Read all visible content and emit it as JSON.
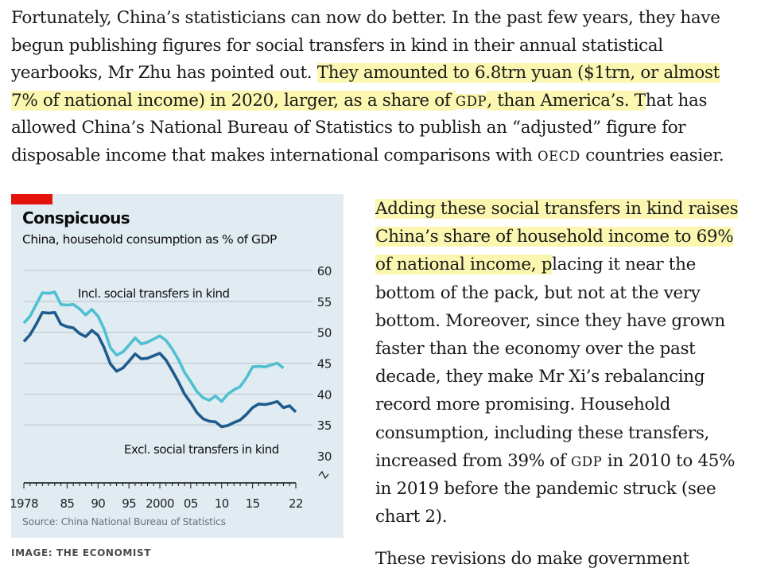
{
  "article": {
    "intro_lines": [
      [
        {
          "t": "Fortunately, China’s statisticians can now do better. In the past few years, they have"
        }
      ],
      [
        {
          "t": "begun publishing figures for social transfers in kind in their annual statistical"
        }
      ],
      [
        {
          "t": "yearbooks, Mr Zhu has pointed out. "
        },
        {
          "t": "They amounted to 6.8trn yuan ($1trn, or almost",
          "hl": true
        }
      ],
      [
        {
          "t": "7% of national income) in 2020, larger, as a share of ",
          "hl": true
        },
        {
          "t": "GDP",
          "hl": true,
          "sc": true
        },
        {
          "t": ", than America’s. T",
          "hl": true
        },
        {
          "t": "hat has"
        }
      ],
      [
        {
          "t": "allowed China’s National Bureau of Statistics to publish an “adjusted” figure for"
        }
      ],
      [
        {
          "t": "disposable income that makes international comparisons with "
        },
        {
          "t": "OECD",
          "sc": true
        },
        {
          "t": " countries easier."
        }
      ]
    ],
    "side_lines": [
      [
        {
          "t": "Adding these social transfers in kind raises",
          "hl": true
        }
      ],
      [
        {
          "t": "China’s share of household income to 69%",
          "hl": true
        }
      ],
      [
        {
          "t": "of national income, p",
          "hl": true
        },
        {
          "t": "lacing it near the"
        }
      ],
      [
        {
          "t": "bottom of the pack, but not at the very"
        }
      ],
      [
        {
          "t": "bottom. Moreover, since they have grown"
        }
      ],
      [
        {
          "t": "faster than the economy over the past"
        }
      ],
      [
        {
          "t": "decade, they make Mr Xi’s rebalancing"
        }
      ],
      [
        {
          "t": "record more promising. Household"
        }
      ],
      [
        {
          "t": "consumption, including these transfers,"
        }
      ],
      [
        {
          "t": "increased from 39% of "
        },
        {
          "t": "GDP",
          "sc": true
        },
        {
          "t": " in 2010 to 45%"
        }
      ],
      [
        {
          "t": "in 2019 before the pandemic struck (see"
        }
      ],
      [
        {
          "t": "chart 2)."
        }
      ]
    ],
    "next_line": "These revisions do make government",
    "image_credit": "IMAGE: THE ECONOMIST"
  },
  "chart_data": {
    "type": "line",
    "title": "Conspicuous",
    "subtitle": "China, household consumption as % of GDP",
    "source": "Source: China National Bureau of Statistics",
    "xlim": [
      1978,
      2022
    ],
    "ylim": [
      30,
      60
    ],
    "y_ticks": [
      30,
      35,
      40,
      45,
      50,
      55,
      60
    ],
    "x_tick_labels": [
      {
        "year": 1978,
        "label": "1978"
      },
      {
        "year": 1985,
        "label": "85"
      },
      {
        "year": 1990,
        "label": "90"
      },
      {
        "year": 1995,
        "label": "95"
      },
      {
        "year": 2000,
        "label": "2000"
      },
      {
        "year": 2005,
        "label": "05"
      },
      {
        "year": 2010,
        "label": "10"
      },
      {
        "year": 2015,
        "label": "15"
      },
      {
        "year": 2022,
        "label": "22"
      }
    ],
    "y_axis_side": "right",
    "axis_break": true,
    "grid": true,
    "x": [
      1978,
      1979,
      1980,
      1981,
      1982,
      1983,
      1984,
      1985,
      1986,
      1987,
      1988,
      1989,
      1990,
      1991,
      1992,
      1993,
      1994,
      1995,
      1996,
      1997,
      1998,
      1999,
      2000,
      2001,
      2002,
      2003,
      2004,
      2005,
      2006,
      2007,
      2008,
      2009,
      2010,
      2011,
      2012,
      2013,
      2014,
      2015,
      2016,
      2017,
      2018,
      2019,
      2020,
      2021,
      2022
    ],
    "series": [
      {
        "name": "Incl. social transfers in kind",
        "color": "#4fc0d0",
        "values": [
          null,
          null,
          null,
          null,
          null,
          null,
          null,
          null,
          null,
          null,
          null,
          null,
          null,
          null,
          null,
          null,
          null,
          null,
          null,
          null,
          null,
          null,
          null,
          null,
          null,
          null,
          null,
          null,
          null,
          null,
          null,
          null,
          null,
          null,
          null,
          null,
          null,
          null,
          null,
          null,
          null,
          null,
          null,
          null,
          null
        ]
      },
      {
        "name": "Excl. social transfers in kind",
        "color": "#1e5b8c",
        "values": [
          null,
          null,
          null,
          null,
          null,
          null,
          null,
          null,
          null,
          null,
          null,
          null,
          null,
          null,
          null,
          null,
          null,
          null,
          null,
          null,
          null,
          null,
          null,
          null,
          null,
          null,
          null,
          null,
          null,
          null,
          null,
          null,
          null,
          null,
          null,
          null,
          null,
          null,
          null,
          null,
          null,
          null,
          null,
          null,
          null
        ]
      }
    ]
  }
}
